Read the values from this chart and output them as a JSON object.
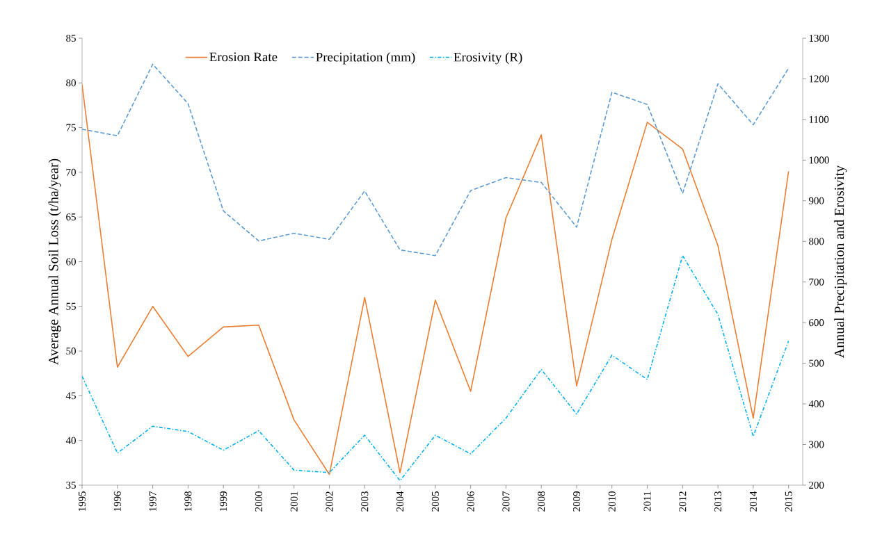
{
  "chart_data": {
    "type": "line",
    "categories": [
      "1995",
      "1996",
      "1997",
      "1998",
      "1999",
      "2000",
      "2001",
      "2002",
      "2003",
      "2004",
      "2005",
      "2006",
      "2007",
      "2008",
      "2009",
      "2010",
      "2011",
      "2012",
      "2013",
      "2014",
      "2015"
    ],
    "ylabel": "Average Annual Soil Loss (t/ha/year)",
    "y2label": "Annual Precipitation and Erosivity",
    "ylim": [
      35,
      85
    ],
    "yticks": [
      35,
      40,
      45,
      50,
      55,
      60,
      65,
      70,
      75,
      80,
      85
    ],
    "y2lim": [
      200,
      1300
    ],
    "y2ticks": [
      200,
      300,
      400,
      500,
      600,
      700,
      800,
      900,
      1000,
      1100,
      1200,
      1300
    ],
    "legend": "top",
    "grid": false,
    "series": [
      {
        "name": "Erosion Rate",
        "color": "#ed7d31",
        "line_style": "solid",
        "values": [
          79.8,
          48.2,
          55.0,
          49.4,
          52.7,
          52.9,
          42.3,
          36.2,
          56.0,
          36.4,
          55.7,
          45.5,
          64.9,
          74.2,
          46.1,
          62.5,
          75.6,
          72.6,
          61.8,
          42.5,
          70.1
        ]
      },
      {
        "name": "Precipitation (mm)",
        "color": "#5b9bd5",
        "line_style": "dashed",
        "axis": "y2",
        "values": [
          1076,
          1060,
          1236,
          1139,
          875,
          801,
          820,
          805,
          924,
          779,
          765,
          925,
          957,
          945,
          835,
          1167,
          1137,
          918,
          1188,
          1087,
          1226
        ]
      },
      {
        "name": "Erosivity (R)",
        "color": "#00b0f0",
        "line_style": "dashdot",
        "axis": "y2",
        "values": [
          468,
          279,
          345,
          332,
          286,
          334,
          237,
          231,
          323,
          211,
          323,
          277,
          365,
          485,
          375,
          520,
          460,
          765,
          620,
          320,
          555
        ]
      }
    ]
  }
}
